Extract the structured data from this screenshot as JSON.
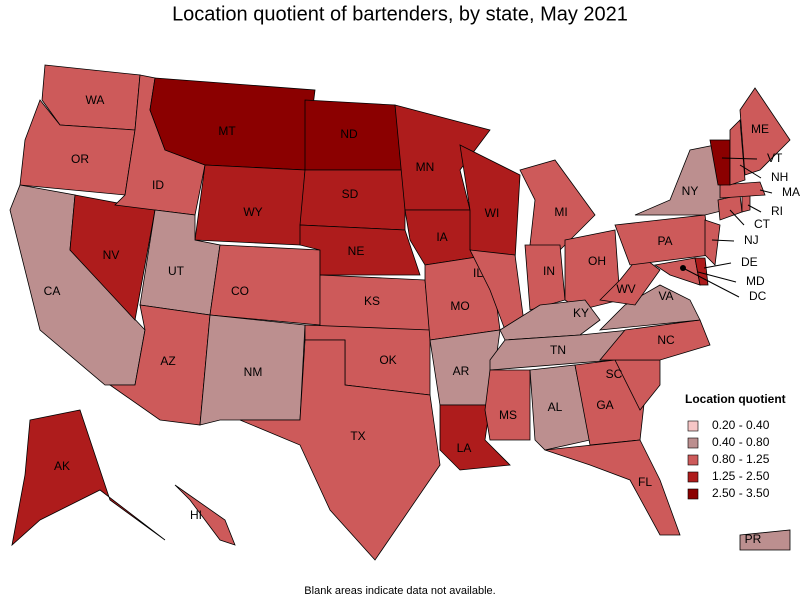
{
  "title": "Location quotient of bartenders, by state, May 2021",
  "legend": {
    "title": "Location quotient",
    "items": [
      {
        "label": "0.20 - 0.40",
        "color": "#f6c6c6"
      },
      {
        "label": "0.40 - 0.80",
        "color": "#bc8f8f"
      },
      {
        "label": "0.80 - 1.25",
        "color": "#cd5a5a"
      },
      {
        "label": "1.25 - 2.50",
        "color": "#ae1c1c"
      },
      {
        "label": "2.50 - 3.50",
        "color": "#8b0000"
      }
    ]
  },
  "states": [
    {
      "label": "WA",
      "color": "#cd5a5a"
    },
    {
      "label": "OR",
      "color": "#cd5a5a"
    },
    {
      "label": "CA",
      "color": "#bc8f8f"
    },
    {
      "label": "NV",
      "color": "#ae1c1c"
    },
    {
      "label": "ID",
      "color": "#cd5a5a"
    },
    {
      "label": "MT",
      "color": "#8b0000"
    },
    {
      "label": "WY",
      "color": "#ae1c1c"
    },
    {
      "label": "UT",
      "color": "#bc8f8f"
    },
    {
      "label": "AZ",
      "color": "#cd5a5a"
    },
    {
      "label": "CO",
      "color": "#cd5a5a"
    },
    {
      "label": "NM",
      "color": "#bc8f8f"
    },
    {
      "label": "ND",
      "color": "#8b0000"
    },
    {
      "label": "SD",
      "color": "#ae1c1c"
    },
    {
      "label": "NE",
      "color": "#ae1c1c"
    },
    {
      "label": "KS",
      "color": "#cd5a5a"
    },
    {
      "label": "OK",
      "color": "#cd5a5a"
    },
    {
      "label": "TX",
      "color": "#cd5a5a"
    },
    {
      "label": "MN",
      "color": "#ae1c1c"
    },
    {
      "label": "IA",
      "color": "#ae1c1c"
    },
    {
      "label": "MO",
      "color": "#cd5a5a"
    },
    {
      "label": "AR",
      "color": "#bc8f8f"
    },
    {
      "label": "LA",
      "color": "#ae1c1c"
    },
    {
      "label": "WI",
      "color": "#ae1c1c"
    },
    {
      "label": "IL",
      "color": "#cd5a5a"
    },
    {
      "label": "MI",
      "color": "#cd5a5a"
    },
    {
      "label": "IN",
      "color": "#cd5a5a"
    },
    {
      "label": "OH",
      "color": "#cd5a5a"
    },
    {
      "label": "KY",
      "color": "#bc8f8f"
    },
    {
      "label": "TN",
      "color": "#bc8f8f"
    },
    {
      "label": "MS",
      "color": "#cd5a5a"
    },
    {
      "label": "AL",
      "color": "#bc8f8f"
    },
    {
      "label": "GA",
      "color": "#cd5a5a"
    },
    {
      "label": "FL",
      "color": "#cd5a5a"
    },
    {
      "label": "SC",
      "color": "#cd5a5a"
    },
    {
      "label": "NC",
      "color": "#cd5a5a"
    },
    {
      "label": "VA",
      "color": "#bc8f8f"
    },
    {
      "label": "WV",
      "color": "#cd5a5a"
    },
    {
      "label": "PA",
      "color": "#cd5a5a"
    },
    {
      "label": "NY",
      "color": "#bc8f8f"
    },
    {
      "label": "MD",
      "color": "#cd5a5a"
    },
    {
      "label": "DE",
      "color": "#ae1c1c"
    },
    {
      "label": "NJ",
      "color": "#cd5a5a"
    },
    {
      "label": "CT",
      "color": "#cd5a5a"
    },
    {
      "label": "RI",
      "color": "#cd5a5a"
    },
    {
      "label": "MA",
      "color": "#cd5a5a"
    },
    {
      "label": "VT",
      "color": "#8b0000"
    },
    {
      "label": "NH",
      "color": "#cd5a5a"
    },
    {
      "label": "ME",
      "color": "#cd5a5a"
    },
    {
      "label": "AK",
      "color": "#ae1c1c"
    },
    {
      "label": "HI",
      "color": "#cd5a5a"
    },
    {
      "label": "PR",
      "color": "#bc8f8f"
    },
    {
      "label": "DC",
      "color": "#cd5a5a"
    }
  ],
  "footnote": "Blank areas indicate data not available."
}
